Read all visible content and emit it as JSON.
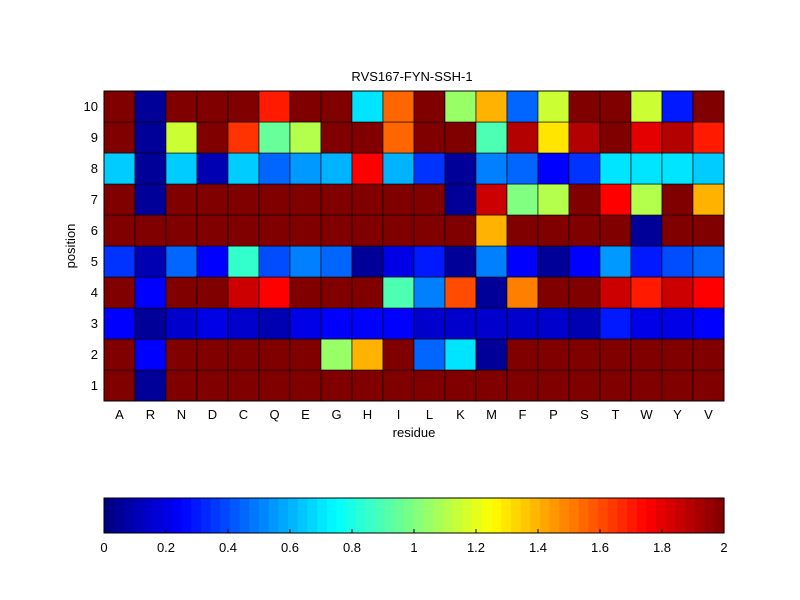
{
  "chart_data": {
    "type": "heatmap",
    "title": "RVS167-FYN-SSH-1",
    "xlabel": "residue",
    "ylabel": "position",
    "x_categories": [
      "A",
      "R",
      "N",
      "D",
      "C",
      "Q",
      "E",
      "G",
      "H",
      "I",
      "L",
      "K",
      "M",
      "F",
      "P",
      "S",
      "T",
      "W",
      "Y",
      "V"
    ],
    "y_categories": [
      "1",
      "2",
      "3",
      "4",
      "5",
      "6",
      "7",
      "8",
      "9",
      "10"
    ],
    "values": [
      [
        2.0,
        0.05,
        2.0,
        2.0,
        2.0,
        2.0,
        2.0,
        2.0,
        2.0,
        2.0,
        2.0,
        2.0,
        2.0,
        2.0,
        2.0,
        2.0,
        2.0,
        2.0,
        2.0,
        2.0
      ],
      [
        2.0,
        0.25,
        2.0,
        2.0,
        2.0,
        2.0,
        2.0,
        1.05,
        1.4,
        2.0,
        0.45,
        0.7,
        0.05,
        2.0,
        2.0,
        2.0,
        2.0,
        2.0,
        2.0,
        2.0
      ],
      [
        0.25,
        0.05,
        0.15,
        0.2,
        0.15,
        0.1,
        0.2,
        0.25,
        0.25,
        0.25,
        0.15,
        0.15,
        0.15,
        0.15,
        0.15,
        0.1,
        0.3,
        0.2,
        0.2,
        0.25
      ],
      [
        2.0,
        0.25,
        2.0,
        2.0,
        1.85,
        1.75,
        2.0,
        2.0,
        2.0,
        0.9,
        0.5,
        1.6,
        0.05,
        1.5,
        2.0,
        2.0,
        1.85,
        1.7,
        1.85,
        1.75
      ],
      [
        0.35,
        0.1,
        0.45,
        0.25,
        0.85,
        0.4,
        0.5,
        0.45,
        0.05,
        0.2,
        0.3,
        0.05,
        0.5,
        0.25,
        0.05,
        0.25,
        0.55,
        0.3,
        0.4,
        0.45
      ],
      [
        2.0,
        2.0,
        2.0,
        2.0,
        2.0,
        2.0,
        2.0,
        2.0,
        2.0,
        2.0,
        2.0,
        2.0,
        1.4,
        2.0,
        2.0,
        2.0,
        2.0,
        0.05,
        2.0,
        2.0
      ],
      [
        2.0,
        0.05,
        2.0,
        2.0,
        2.0,
        2.0,
        2.0,
        2.0,
        2.0,
        2.0,
        2.0,
        0.05,
        1.85,
        1.0,
        1.1,
        2.0,
        1.75,
        1.1,
        2.0,
        1.4
      ],
      [
        0.65,
        0.05,
        0.65,
        0.1,
        0.65,
        0.45,
        0.55,
        0.6,
        1.75,
        0.6,
        0.35,
        0.05,
        0.5,
        0.45,
        0.25,
        0.35,
        0.7,
        0.7,
        0.7,
        0.65
      ],
      [
        2.0,
        0.05,
        1.15,
        2.0,
        1.65,
        0.95,
        1.1,
        2.0,
        2.0,
        1.55,
        2.0,
        2.0,
        0.9,
        1.9,
        1.3,
        1.9,
        2.0,
        1.8,
        1.9,
        1.7
      ],
      [
        2.0,
        0.05,
        2.0,
        2.0,
        2.0,
        1.7,
        2.0,
        2.0,
        0.7,
        1.55,
        2.0,
        1.05,
        1.4,
        0.45,
        1.15,
        2.0,
        2.0,
        1.15,
        0.3,
        2.0
      ]
    ],
    "colormap": "jet",
    "vmin": 0,
    "vmax": 2,
    "colorbar": {
      "orientation": "horizontal",
      "placement": "bottom",
      "ticks": [
        "0",
        "0.2",
        "0.4",
        "0.6",
        "0.8",
        "1",
        "1.2",
        "1.4",
        "1.6",
        "1.8",
        "2"
      ]
    },
    "grid": true
  }
}
